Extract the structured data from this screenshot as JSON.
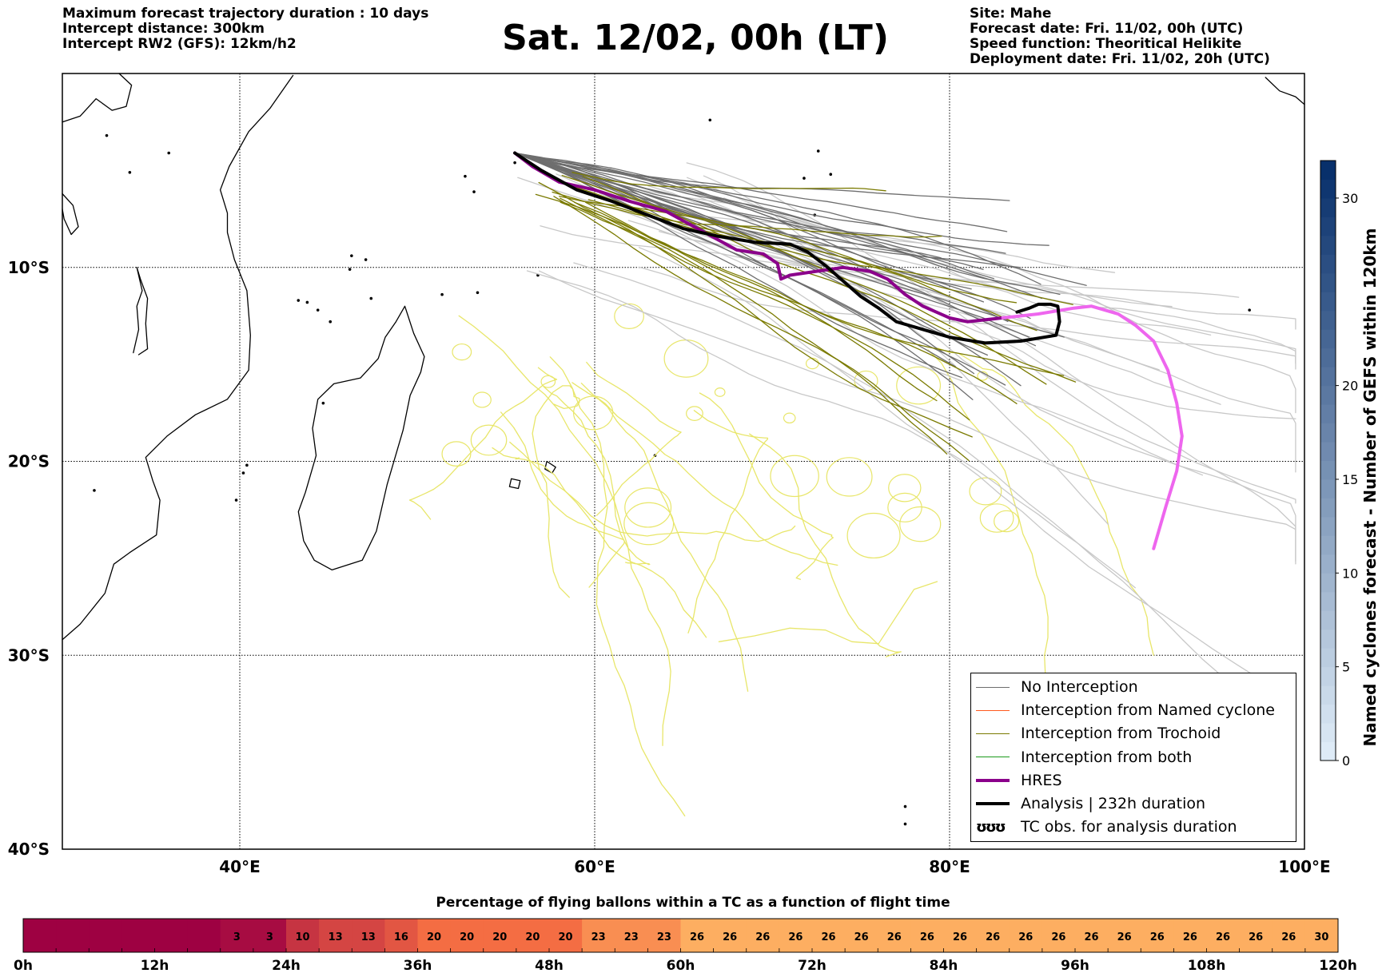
{
  "header": {
    "left_lines": [
      "Maximum forecast trajectory duration : 10 days",
      "Intercept distance: 300km",
      "Intercept RW2 (GFS):  12km/h2"
    ],
    "title": "Sat. 12/02, 00h (LT)",
    "right_lines": [
      "Site: Mahe",
      "Forecast date: Fri. 11/02, 00h (UTC)",
      "Speed function: Theoritical Helikite",
      "Deployment date: Fri. 11/02, 20h (UTC)"
    ]
  },
  "map": {
    "lon_range": [
      30,
      100
    ],
    "lat_range": [
      -40,
      0
    ],
    "lat_ticks": [
      {
        "value": -10,
        "label": "10°S"
      },
      {
        "value": -20,
        "label": "20°S"
      },
      {
        "value": -30,
        "label": "30°S"
      },
      {
        "value": -40,
        "label": "40°S"
      }
    ],
    "lon_ticks": [
      {
        "value": 40,
        "label": "40°E"
      },
      {
        "value": 60,
        "label": "60°E"
      },
      {
        "value": 80,
        "label": "80°E"
      },
      {
        "value": 100,
        "label": "100°E"
      }
    ],
    "colors": {
      "no_interception": "#6e6e6e",
      "no_interception_light": "#c8c8c8",
      "tc_obs": "#e8e66a",
      "hres": "#8b008b",
      "hres_forecast": "#ee66ee",
      "analysis": "#000000",
      "coast": "#000000"
    },
    "tracks": {
      "hres": [
        [
          55.5,
          -4.1
        ],
        [
          56.5,
          -4.8
        ],
        [
          58,
          -5.6
        ],
        [
          60,
          -6.0
        ],
        [
          62,
          -6.6
        ],
        [
          64,
          -7.1
        ],
        [
          66,
          -8.1
        ],
        [
          68,
          -9.1
        ],
        [
          69.5,
          -9.3
        ],
        [
          70.3,
          -9.8
        ],
        [
          70.5,
          -10.6
        ],
        [
          71,
          -10.4
        ],
        [
          72.5,
          -10.2
        ],
        [
          74,
          -10.0
        ],
        [
          75.5,
          -10.2
        ],
        [
          76.5,
          -10.6
        ],
        [
          77.5,
          -11.4
        ],
        [
          78.5,
          -12.0
        ],
        [
          80,
          -12.6
        ],
        [
          81,
          -12.8
        ],
        [
          83,
          -12.6
        ],
        [
          85,
          -12.4
        ],
        [
          87,
          -12.1
        ],
        [
          88,
          -12.0
        ],
        [
          89.5,
          -12.4
        ],
        [
          90.5,
          -13.0
        ],
        [
          91.5,
          -13.8
        ],
        [
          92.3,
          -15.3
        ],
        [
          92.8,
          -17.0
        ],
        [
          93.1,
          -18.7
        ],
        [
          92.8,
          -20.5
        ],
        [
          92.2,
          -22.3
        ],
        [
          91.5,
          -24.5
        ]
      ],
      "analysis": [
        [
          55.5,
          -4.1
        ],
        [
          57,
          -5.0
        ],
        [
          59,
          -6.0
        ],
        [
          61,
          -6.6
        ],
        [
          63,
          -7.3
        ],
        [
          65,
          -8.0
        ],
        [
          67,
          -8.4
        ],
        [
          69,
          -8.7
        ],
        [
          71,
          -8.8
        ],
        [
          72,
          -9.2
        ],
        [
          73,
          -9.9
        ],
        [
          74,
          -10.7
        ],
        [
          75,
          -11.5
        ],
        [
          76,
          -12.1
        ],
        [
          77,
          -12.8
        ],
        [
          78.5,
          -13.2
        ],
        [
          80,
          -13.6
        ],
        [
          82,
          -13.9
        ],
        [
          84,
          -13.8
        ],
        [
          86,
          -13.5
        ],
        [
          86.2,
          -12.8
        ],
        [
          86.1,
          -12.0
        ],
        [
          85.7,
          -11.9
        ],
        [
          85,
          -11.9
        ],
        [
          84.5,
          -12.1
        ],
        [
          83.8,
          -12.3
        ]
      ]
    },
    "legend": [
      {
        "label": "No Interception",
        "color": "#6e6e6e",
        "width": 1.5,
        "symbol": ""
      },
      {
        "label": "Interception from Named cyclone",
        "color": "#ff5a1e",
        "width": 1.5,
        "symbol": ""
      },
      {
        "label": "Interception from Trochoid",
        "color": "#7a7a00",
        "width": 1.5,
        "symbol": ""
      },
      {
        "label": "Interception from both",
        "color": "#1a9a1a",
        "width": 1.5,
        "symbol": ""
      },
      {
        "label": "HRES",
        "color": "#8b008b",
        "width": 4,
        "symbol": ""
      },
      {
        "label": "Analysis | 232h duration",
        "color": "#000000",
        "width": 4,
        "symbol": ""
      },
      {
        "label": "TC obs. for analysis duration",
        "color": "#000000",
        "width": 0,
        "symbol": "ʊʊʊ"
      }
    ]
  },
  "vertical_colorbar": {
    "label": "Named cyclones forecast - Number of GEFS within 120km",
    "range": [
      0,
      32
    ],
    "ticks": [
      0,
      5,
      10,
      15,
      20,
      30
    ],
    "color_low": "#deebf7",
    "color_high": "#08306b"
  },
  "bottom_colorbar": {
    "title": "Percentage of flying ballons within a TC as a function of flight time",
    "time_range_h": [
      0,
      120
    ],
    "time_ticks": [
      "0h",
      "12h",
      "24h",
      "36h",
      "48h",
      "60h",
      "72h",
      "84h",
      "96h",
      "108h",
      "120h"
    ],
    "segment_values": [
      "",
      "",
      "",
      "",
      "",
      "",
      "3",
      "3",
      "10",
      "13",
      "13",
      "16",
      "20",
      "20",
      "20",
      "20",
      "20",
      "23",
      "23",
      "23",
      "26",
      "26",
      "26",
      "26",
      "26",
      "26",
      "26",
      "26",
      "26",
      "26",
      "26",
      "26",
      "26",
      "26",
      "26",
      "26",
      "26",
      "26",
      "26",
      "30"
    ],
    "color_dark": "#9e0142",
    "color_mid": "#f46d43",
    "color_light": "#fdae61"
  }
}
